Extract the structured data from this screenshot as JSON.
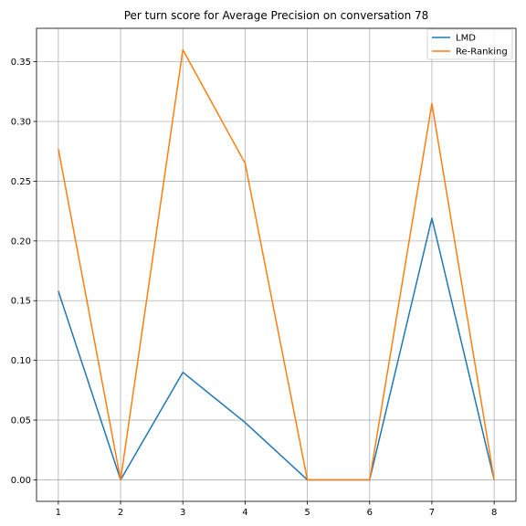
{
  "chart_data": {
    "type": "line",
    "title": "Per turn score for Average Precision on conversation 78",
    "xlabel": "",
    "ylabel": "",
    "x": [
      1,
      2,
      3,
      4,
      5,
      6,
      7,
      8
    ],
    "x_ticks": [
      "1",
      "2",
      "3",
      "4",
      "5",
      "6",
      "7",
      "8"
    ],
    "xlim": [
      0.65,
      8.35
    ],
    "ylim": [
      -0.018,
      0.378
    ],
    "y_ticks": [
      "0.00",
      "0.05",
      "0.10",
      "0.15",
      "0.20",
      "0.25",
      "0.30",
      "0.35"
    ],
    "y_tick_values": [
      0,
      0.05,
      0.1,
      0.15,
      0.2,
      0.25,
      0.3,
      0.35
    ],
    "grid": true,
    "legend_position": "top-right",
    "series": [
      {
        "name": "LMD",
        "color": "#1f77b4",
        "values": [
          0.158,
          0.0,
          0.09,
          0.048,
          0.0,
          0.0,
          0.219,
          0.0
        ]
      },
      {
        "name": "Re-Ranking",
        "color": "#ff7f0e",
        "values": [
          0.277,
          0.0,
          0.36,
          0.265,
          0.0,
          0.0,
          0.315,
          0.0
        ]
      }
    ]
  }
}
